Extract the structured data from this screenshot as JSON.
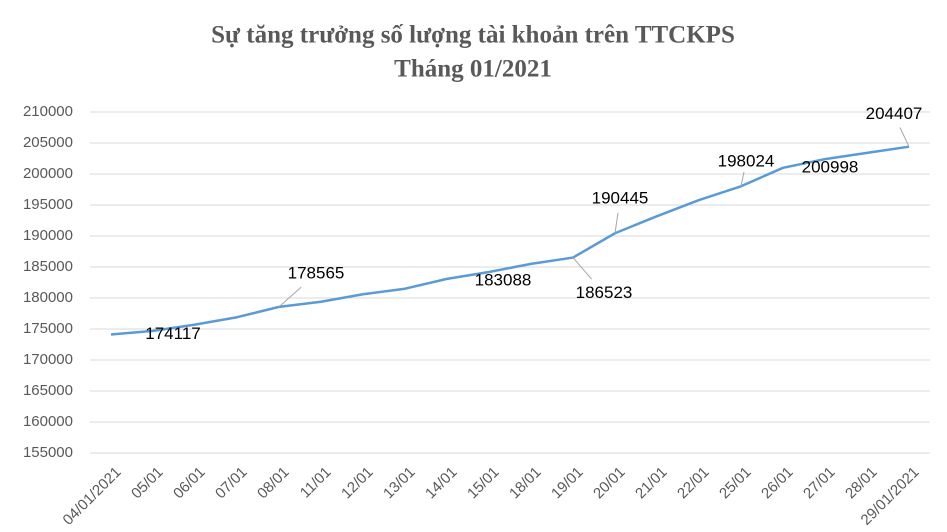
{
  "chart_data": {
    "type": "line",
    "title": "Sự tăng trưởng số lượng tài khoản trên TTCKPS",
    "subtitle": "Tháng 01/2021",
    "categories": [
      "04/01/2021",
      "05/01",
      "06/01",
      "07/01",
      "08/01",
      "11/01",
      "12/01",
      "13/01",
      "14/01",
      "15/01",
      "18/01",
      "19/01",
      "20/01",
      "21/01",
      "22/01",
      "25/01",
      "26/01",
      "27/01",
      "28/01",
      "29/01/2021"
    ],
    "series": [
      {
        "color": "#5b9bd5",
        "values": [
          174117,
          174700,
          175700,
          176900,
          178565,
          179400,
          180600,
          181500,
          183088,
          184200,
          185500,
          186523,
          190445,
          193200,
          195800,
          198024,
          200998,
          202400,
          203400,
          204407
        ],
        "value_labels": [
          "174117",
          null,
          null,
          null,
          "178565",
          null,
          null,
          null,
          "183088",
          null,
          null,
          "186523",
          "190445",
          null,
          null,
          "198024",
          "200998",
          null,
          null,
          "204407"
        ]
      }
    ],
    "ylim": [
      155000,
      210000
    ],
    "yticks": [
      155000,
      160000,
      165000,
      170000,
      175000,
      180000,
      185000,
      190000,
      195000,
      200000,
      205000,
      210000
    ],
    "grid": true
  }
}
